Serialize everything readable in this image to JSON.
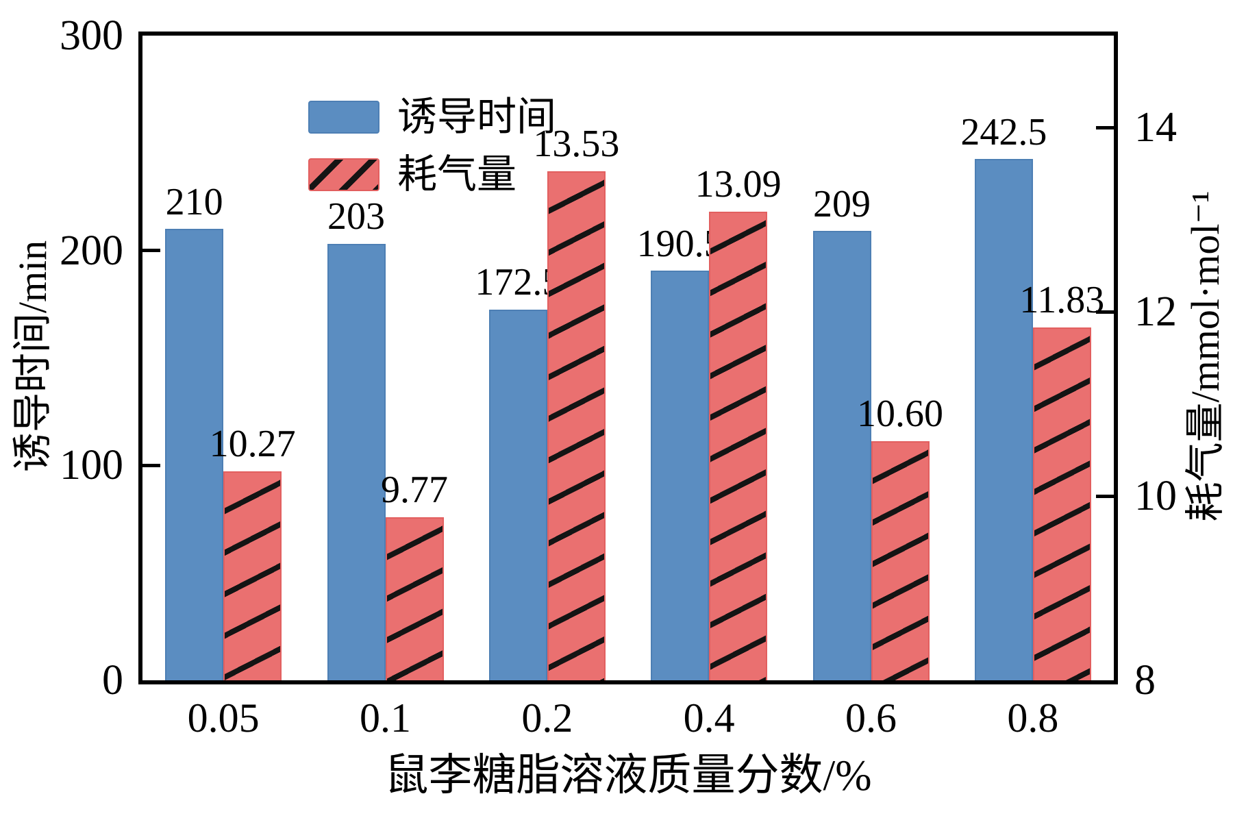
{
  "chart_data": {
    "type": "bar",
    "categories": [
      "0.05",
      "0.1",
      "0.2",
      "0.4",
      "0.6",
      "0.8"
    ],
    "series": [
      {
        "key": "induction-time",
        "name": "诱导时间",
        "axis": "left",
        "color": "#5b8dc1",
        "hatch": "none",
        "values": [
          210,
          203,
          172.5,
          190.5,
          209,
          242.5
        ],
        "labels": [
          "210",
          "203",
          "172.5",
          "190.5",
          "209",
          "242.5"
        ]
      },
      {
        "key": "gas-consumption",
        "name": "耗气量",
        "axis": "right",
        "color": "#ea7070",
        "hatch": "diagonal-black",
        "values": [
          10.27,
          9.77,
          13.53,
          13.09,
          10.6,
          11.83
        ],
        "labels": [
          "10.27",
          "9.77",
          "13.53",
          "13.09",
          "10.60",
          "11.83"
        ]
      }
    ],
    "left_axis": {
      "label": "诱导时间/min",
      "min": 0,
      "max": 300,
      "ticks": [
        0,
        100,
        200,
        300
      ]
    },
    "right_axis": {
      "label": "耗气量/mmol·mol⁻¹",
      "min": 8,
      "max": 15,
      "ticks": [
        8,
        10,
        12,
        14
      ]
    },
    "xlabel": "鼠李糖脂溶液质量分数/%",
    "legend_position": "upper-left",
    "grid": false,
    "background": "#ffffff",
    "axis_color": "#000000"
  }
}
